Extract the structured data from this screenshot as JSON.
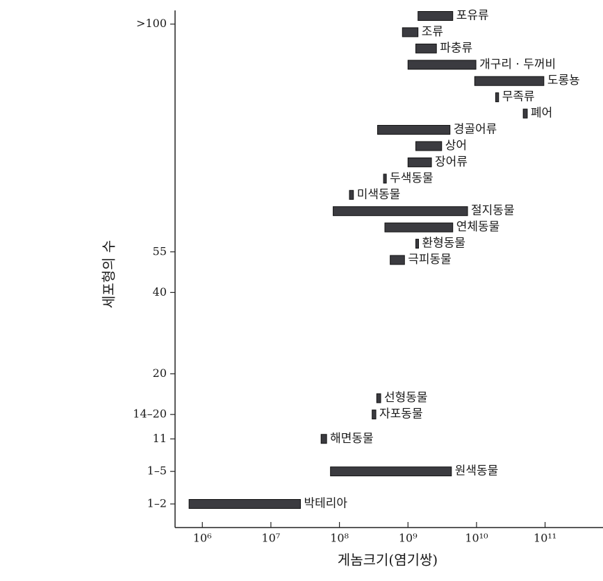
{
  "chart_data": {
    "type": "range-bar",
    "x_label": "게놈크기(염기쌍)",
    "y_label": "세포형의 수",
    "xscale": "log",
    "xlim": [
      400000,
      700000000000
    ],
    "xticks": [
      {
        "value": 1000000,
        "label": "10⁶"
      },
      {
        "value": 10000000,
        "label": "10⁷"
      },
      {
        "value": 100000000,
        "label": "10⁸"
      },
      {
        "value": 1000000000,
        "label": "10⁹"
      },
      {
        "value": 10000000000,
        "label": "10¹⁰"
      },
      {
        "value": 100000000000,
        "label": "10¹¹"
      }
    ],
    "color": "#3b3b40",
    "categories": [
      "포유류",
      null,
      "조류",
      null,
      "파충류",
      null,
      "개구리 · 두꺼비",
      null,
      "도롱뇽",
      null,
      "무족류",
      null,
      "폐어",
      null,
      "경골어류",
      null,
      "상어",
      null,
      "장어류",
      null,
      "두색동물",
      null,
      "미색동물",
      null,
      "절지동물",
      null,
      "연체동물",
      null,
      "환형동물",
      null,
      "극피동물",
      null,
      null,
      null,
      null,
      null,
      null,
      null,
      null,
      null,
      null,
      null,
      null,
      null,
      null,
      null,
      null,
      "선형동물",
      null,
      "자포동물",
      null,
      null,
      "해면동물",
      null,
      null,
      null,
      "원색동물",
      null,
      null,
      null,
      "박테리아"
    ],
    "row_labels": [
      null,
      ">100",
      null,
      null,
      null,
      null,
      null,
      null,
      null,
      null,
      null,
      null,
      null,
      null,
      null,
      null,
      null,
      null,
      null,
      null,
      null,
      null,
      null,
      null,
      null,
      null,
      null,
      null,
      null,
      "55",
      null,
      null,
      null,
      null,
      "40",
      null,
      null,
      null,
      null,
      null,
      null,
      null,
      null,
      null,
      "20",
      null,
      null,
      null,
      null,
      "14–20",
      null,
      null,
      "11",
      null,
      null,
      null,
      "1–5",
      null,
      null,
      null,
      "1–2"
    ],
    "values": [
      [
        1400000000,
        4500000000
      ],
      null,
      [
        830000000,
        1400000000
      ],
      null,
      [
        1300000000,
        2600000000
      ],
      null,
      [
        1000000000,
        9800000000
      ],
      null,
      [
        9400000000,
        96000000000
      ],
      null,
      [
        19000000000,
        21000000000
      ],
      null,
      [
        48000000000,
        55000000000
      ],
      null,
      [
        360000000,
        4100000000
      ],
      null,
      [
        1300000000,
        3100000000
      ],
      null,
      [
        1000000000,
        2200000000
      ],
      null,
      [
        440000000,
        480000000
      ],
      null,
      [
        140000000,
        160000000
      ],
      null,
      [
        81000000,
        7400000000
      ],
      null,
      [
        460000000,
        4500000000
      ],
      null,
      [
        1300000000,
        1400000000
      ],
      null,
      [
        550000000,
        890000000
      ],
      null,
      null,
      null,
      null,
      null,
      null,
      null,
      null,
      null,
      null,
      null,
      null,
      null,
      null,
      null,
      null,
      [
        350000000,
        400000000
      ],
      null,
      [
        300000000,
        340000000
      ],
      null,
      null,
      [
        54000000,
        65000000
      ],
      null,
      null,
      null,
      [
        74000000,
        4300000000
      ],
      null,
      null,
      null,
      [
        640000,
        27000000
      ]
    ]
  }
}
